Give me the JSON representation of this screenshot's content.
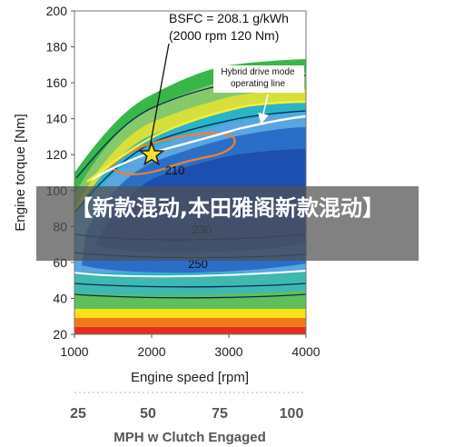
{
  "chart_data": {
    "type": "heatmap",
    "title": "",
    "xlabel": "Engine speed [rpm]",
    "ylabel": "Engine torque [Nm]",
    "xlim": [
      1000,
      4000
    ],
    "ylim": [
      20,
      200
    ],
    "x_ticks": [
      1000,
      2000,
      3000,
      4000
    ],
    "y_ticks": [
      20,
      40,
      60,
      80,
      100,
      120,
      140,
      160,
      180,
      200
    ],
    "contour_labels": [
      {
        "text": "210",
        "rpm": 2300,
        "torque": 109
      },
      {
        "text": "230",
        "rpm": 2650,
        "torque": 76
      },
      {
        "text": "250",
        "rpm": 2600,
        "torque": 57
      }
    ],
    "optimal_point": {
      "rpm": 2000,
      "torque": 120
    },
    "annotation": {
      "line1": "BSFC = 208.1 g/kWh",
      "line2": "(2000 rpm 120 Nm)"
    },
    "hybrid_line_label": {
      "line1": "Hybrid drive mode",
      "line2": "operating line"
    },
    "secondary_axis": {
      "label": "MPH w Clutch Engaged",
      "ticks": [
        25,
        50,
        75,
        100
      ]
    }
  },
  "banner": {
    "text": "【新款混动,本田雅阁新款混动】"
  }
}
